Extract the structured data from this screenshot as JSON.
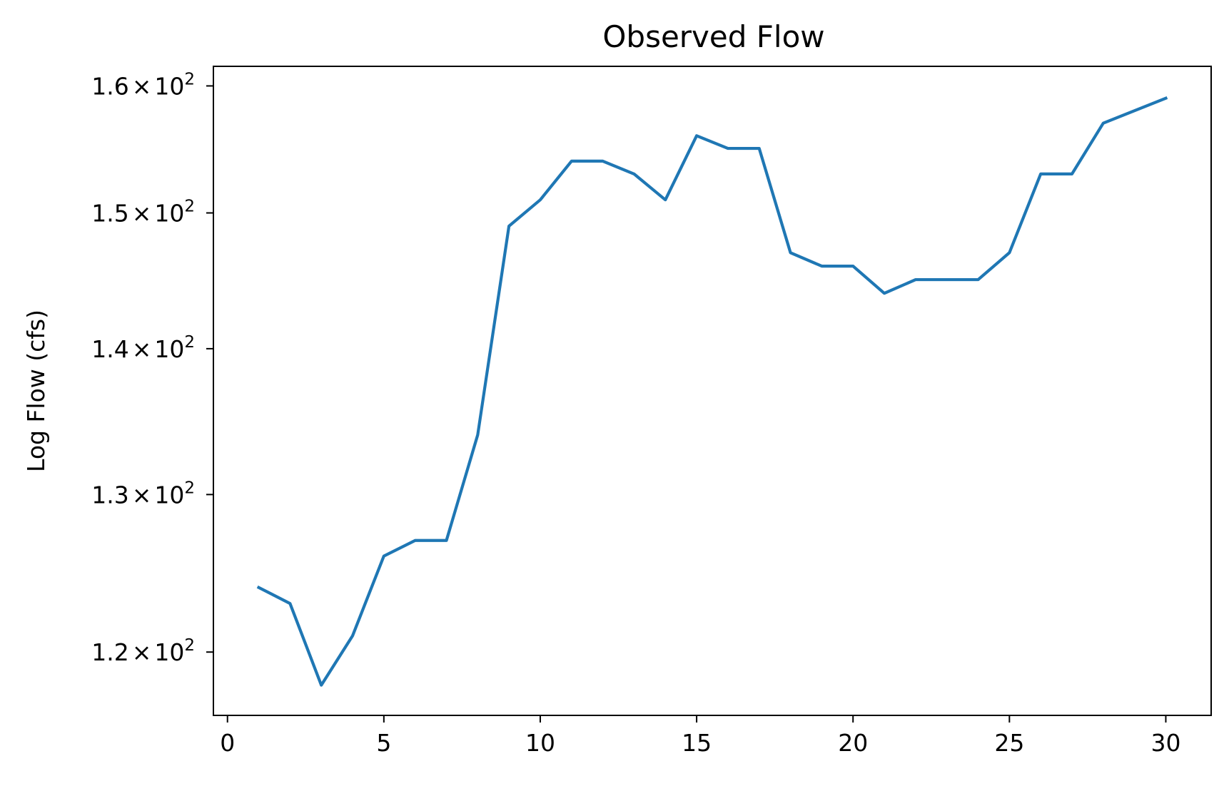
{
  "chart_data": {
    "type": "line",
    "title": "Observed Flow",
    "xlabel": "",
    "ylabel": "Log Flow (cfs)",
    "yscale": "log",
    "grid": false,
    "xlim": [
      -0.45,
      31.45
    ],
    "ylim": [
      116.2,
      161.6
    ],
    "xticks": [
      0,
      5,
      10,
      15,
      20,
      25,
      30
    ],
    "xtick_labels": [
      "0",
      "5",
      "10",
      "15",
      "20",
      "25",
      "30"
    ],
    "yticks": [
      120,
      130,
      140,
      150,
      160
    ],
    "ytick_labels": [
      {
        "mantissa": "1.2",
        "times": "×",
        "base": "10",
        "exp": "2"
      },
      {
        "mantissa": "1.3",
        "times": "×",
        "base": "10",
        "exp": "2"
      },
      {
        "mantissa": "1.4",
        "times": "×",
        "base": "10",
        "exp": "2"
      },
      {
        "mantissa": "1.5",
        "times": "×",
        "base": "10",
        "exp": "2"
      },
      {
        "mantissa": "1.6",
        "times": "×",
        "base": "10",
        "exp": "2"
      }
    ],
    "series": [
      {
        "color": "#1f77b4",
        "x": [
          1,
          2,
          3,
          4,
          5,
          6,
          7,
          8,
          9,
          10,
          11,
          12,
          13,
          14,
          15,
          16,
          17,
          18,
          19,
          20,
          21,
          22,
          23,
          24,
          25,
          26,
          27,
          28,
          29,
          30
        ],
        "y": [
          124,
          123,
          118,
          121,
          126,
          127,
          127,
          134,
          149,
          151,
          154,
          154,
          153,
          151,
          156,
          155,
          155,
          147,
          146,
          146,
          144,
          145,
          145,
          145,
          147,
          153,
          153,
          157,
          158,
          159
        ]
      }
    ]
  }
}
